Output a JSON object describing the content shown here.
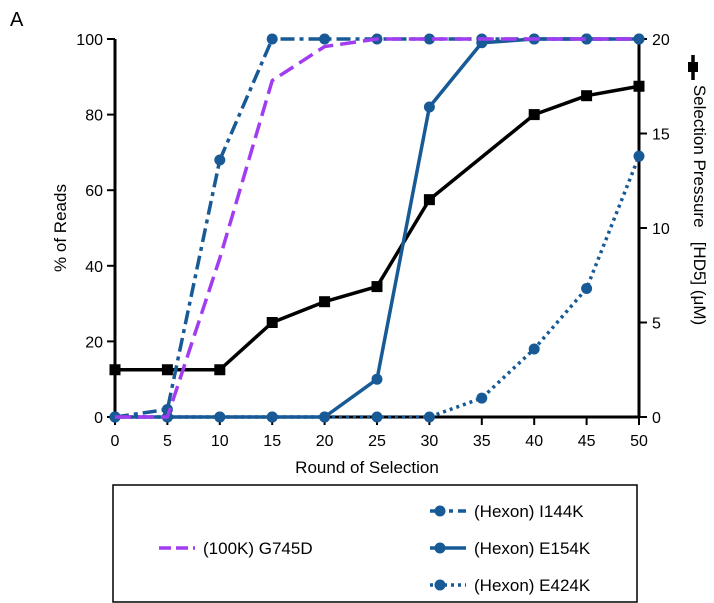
{
  "chart_data": {
    "type": "line",
    "panel_label": "A",
    "xlabel": "Round of Selection",
    "ylabel": "% of Reads",
    "y2label": "Selection Pressure   [HD5] (μM)",
    "x": [
      0,
      5,
      10,
      15,
      20,
      25,
      30,
      35,
      40,
      45,
      50
    ],
    "xlim": [
      0,
      50
    ],
    "ylim": [
      0,
      100
    ],
    "y2lim": [
      0,
      20
    ],
    "xticks": [
      "0",
      "5",
      "10",
      "15",
      "20",
      "25",
      "30",
      "35",
      "40",
      "45",
      "50"
    ],
    "yticks": [
      "0",
      "20",
      "40",
      "60",
      "80",
      "100"
    ],
    "y2ticks": [
      "0",
      "5",
      "10",
      "15",
      "20"
    ],
    "grid": false,
    "legend_position": "bottom",
    "series": [
      {
        "name": "(100K) G745D",
        "axis": "left",
        "color": "#a23cf0",
        "style": "dashed",
        "marker": "none",
        "values": [
          0,
          0,
          42,
          89,
          98,
          100,
          100,
          100,
          100,
          100,
          100
        ]
      },
      {
        "name": "(Hexon) I144K",
        "axis": "left",
        "color": "#175a96",
        "style": "dashdot",
        "marker": "circle",
        "values": [
          0,
          2,
          68,
          100,
          100,
          100,
          100,
          100,
          100,
          100,
          100
        ]
      },
      {
        "name": "(Hexon) E154K",
        "axis": "left",
        "color": "#175a96",
        "style": "solid",
        "marker": "circle",
        "values": [
          0,
          0,
          0,
          0,
          0,
          10,
          82,
          99,
          100,
          100,
          100
        ]
      },
      {
        "name": "(Hexon) E424K",
        "axis": "left",
        "color": "#175a96",
        "style": "dotted",
        "marker": "circle",
        "values": [
          0,
          0,
          0,
          0,
          0,
          0,
          0,
          5,
          18,
          34,
          69
        ]
      },
      {
        "name": "",
        "axis": "right",
        "color": "#000000",
        "style": "solid",
        "marker": "square",
        "values": [
          2.5,
          2.5,
          2.5,
          5.0,
          6.1,
          6.9,
          11.5,
          null,
          16.0,
          17.0,
          17.5
        ]
      }
    ]
  }
}
